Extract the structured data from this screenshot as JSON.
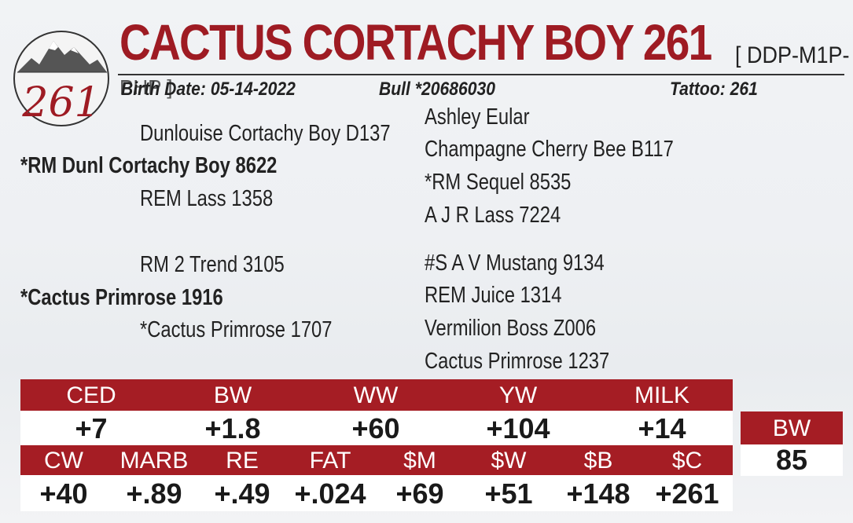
{
  "logo": {
    "text": "261"
  },
  "header": {
    "name": "CACTUS CORTACHY BOY 261",
    "registration": "[ DDP-M1P-",
    "registration_wrap": "PHP ]"
  },
  "info": {
    "birth_date": "Birth Date: 05-14-2022",
    "bull_id": "Bull *20686030",
    "tattoo": "Tattoo: 261"
  },
  "pedigree": {
    "sire": "*RM Dunl Cortachy Boy 8622",
    "sire_sire": "Dunlouise Cortachy Boy D137",
    "sire_dam": "REM Lass 1358",
    "sire_sire_sire": "Ashley Eular",
    "sire_sire_dam": "Champagne Cherry Bee B117",
    "sire_dam_sire": "*RM Sequel 8535",
    "sire_dam_dam": "A J R Lass 7224",
    "dam": "*Cactus Primrose 1916",
    "dam_sire": "RM 2 Trend 3105",
    "dam_dam": "*Cactus Primrose 1707",
    "dam_sire_sire": "#S A V Mustang 9134",
    "dam_sire_dam": "REM Juice 1314",
    "dam_dam_sire": "Vermilion Boss Z006",
    "dam_dam_dam": "Cactus Primrose 1237"
  },
  "epds_row1": [
    {
      "label": "CED",
      "value": "+7"
    },
    {
      "label": "BW",
      "value": "+1.8"
    },
    {
      "label": "WW",
      "value": "+60"
    },
    {
      "label": "YW",
      "value": "+104"
    },
    {
      "label": "MILK",
      "value": "+14"
    }
  ],
  "epds_row2": [
    {
      "label": "CW",
      "value": "+40"
    },
    {
      "label": "MARB",
      "value": "+.89"
    },
    {
      "label": "RE",
      "value": "+.49"
    },
    {
      "label": "FAT",
      "value": "+.024"
    },
    {
      "label": "$M",
      "value": "+69"
    },
    {
      "label": "$W",
      "value": "+51"
    },
    {
      "label": "$B",
      "value": "+148"
    },
    {
      "label": "$C",
      "value": "+261"
    }
  ],
  "actual_bw": {
    "label": "BW",
    "value": "85"
  },
  "colors": {
    "brand_red": "#a51d24",
    "title_red": "#9e1b23"
  }
}
